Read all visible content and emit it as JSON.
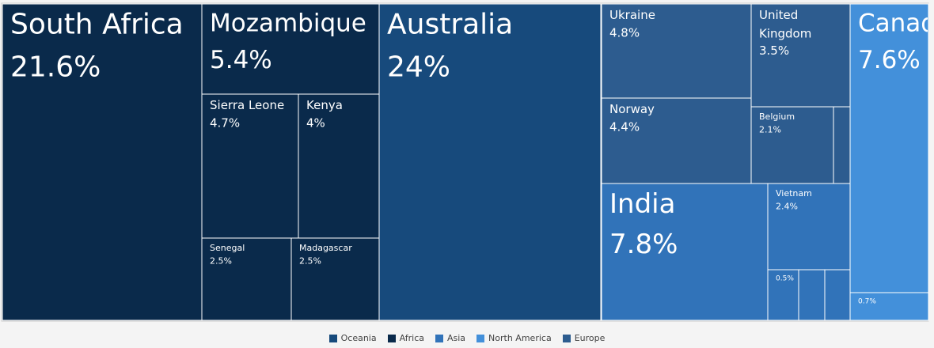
{
  "chart_data": {
    "type": "treemap",
    "series": [
      {
        "name": "Oceania",
        "color": "#174a7c",
        "categories": [
          "Australia"
        ],
        "values": [
          24
        ],
        "value_labels": [
          "24%"
        ]
      },
      {
        "name": "Africa",
        "color": "#0a2a4b",
        "categories": [
          "South Africa",
          "Mozambique",
          "Sierra Leone",
          "Kenya",
          "Senegal",
          "Madagascar"
        ],
        "values": [
          21.6,
          5.4,
          4.7,
          4,
          2.5,
          2.5
        ],
        "value_labels": [
          "21.6%",
          "5.4%",
          "4.7%",
          "4%",
          "2.5%",
          "2.5%"
        ]
      },
      {
        "name": "Asia",
        "color": "#3173b9",
        "categories": [
          "India",
          "Vietnam",
          null,
          null,
          null
        ],
        "values": [
          7.8,
          2.4,
          0.5,
          0.4,
          0.4
        ],
        "value_labels": [
          "7.8%",
          "2.4%",
          "0.5%",
          null,
          null
        ]
      },
      {
        "name": "North America",
        "color": "#4390da",
        "categories": [
          "Canada",
          null
        ],
        "values": [
          7.6,
          0.7
        ],
        "value_labels": [
          "7.6%",
          "0.7%"
        ]
      },
      {
        "name": "Europe",
        "color": "#2d5c8f",
        "categories": [
          "Ukraine",
          "United Kingdom",
          "Norway",
          "Belgium",
          null
        ],
        "values": [
          4.8,
          3.5,
          4.4,
          2.1,
          0.4
        ],
        "value_labels": [
          "4.8%",
          "3.5%",
          "4.4%",
          "2.1%",
          null
        ]
      }
    ]
  }
}
